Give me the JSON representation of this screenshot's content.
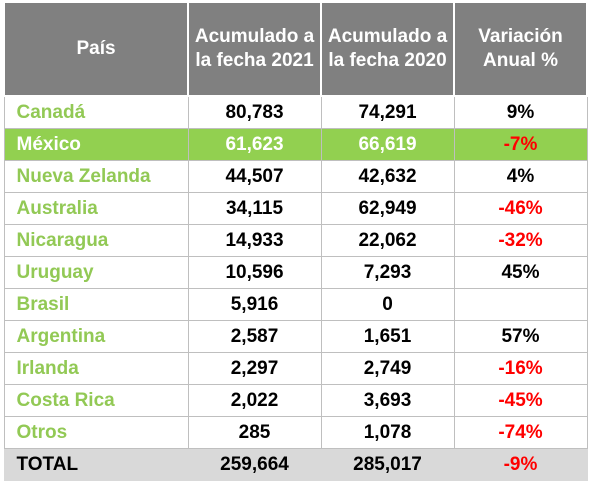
{
  "headers": {
    "country": "País",
    "acc2021": "Acumulado a la fecha 2021",
    "acc2020": "Acumulado a la fecha 2020",
    "variation": "Variación Anual %"
  },
  "rows": [
    {
      "country": "Canadá",
      "acc2021": "80,783",
      "acc2020": "74,291",
      "variation": "9%",
      "negative": false,
      "highlight": false
    },
    {
      "country": "México",
      "acc2021": "61,623",
      "acc2020": "66,619",
      "variation": "-7%",
      "negative": true,
      "highlight": true
    },
    {
      "country": "Nueva Zelanda",
      "acc2021": "44,507",
      "acc2020": "42,632",
      "variation": "4%",
      "negative": false,
      "highlight": false
    },
    {
      "country": "Australia",
      "acc2021": "34,115",
      "acc2020": "62,949",
      "variation": "-46%",
      "negative": true,
      "highlight": false
    },
    {
      "country": "Nicaragua",
      "acc2021": "14,933",
      "acc2020": "22,062",
      "variation": "-32%",
      "negative": true,
      "highlight": false
    },
    {
      "country": "Uruguay",
      "acc2021": "10,596",
      "acc2020": "7,293",
      "variation": "45%",
      "negative": false,
      "highlight": false
    },
    {
      "country": "Brasil",
      "acc2021": "5,916",
      "acc2020": "0",
      "variation": "",
      "negative": false,
      "highlight": false
    },
    {
      "country": "Argentina",
      "acc2021": "2,587",
      "acc2020": "1,651",
      "variation": "57%",
      "negative": false,
      "highlight": false
    },
    {
      "country": "Irlanda",
      "acc2021": "2,297",
      "acc2020": "2,749",
      "variation": "-16%",
      "negative": true,
      "highlight": false
    },
    {
      "country": "Costa Rica",
      "acc2021": "2,022",
      "acc2020": "3,693",
      "variation": "-45%",
      "negative": true,
      "highlight": false
    },
    {
      "country": "Otros",
      "acc2021": "285",
      "acc2020": "1,078",
      "variation": "-74%",
      "negative": true,
      "highlight": false
    }
  ],
  "total": {
    "country": "TOTAL",
    "acc2021": "259,664",
    "acc2020": "285,017",
    "variation": "-9%",
    "negative": true
  },
  "colors": {
    "header_bg": "#808080",
    "country_text": "#92c955",
    "highlight_bg": "#92d050",
    "negative_text": "#ff0000",
    "total_bg": "#d9d9d9"
  }
}
